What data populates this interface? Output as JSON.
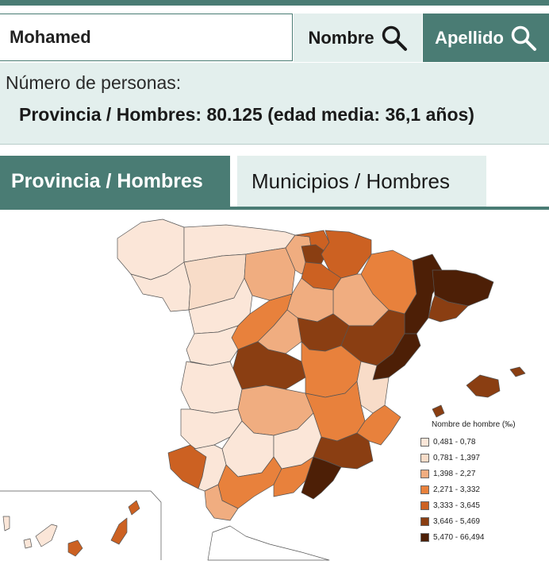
{
  "search": {
    "value": "Mohamed"
  },
  "buttons": {
    "nombre": "Nombre",
    "apellido": "Apellido"
  },
  "summary": {
    "label": "Número de personas:",
    "value": "Provincia / Hombres: 80.125 (edad media: 36,1 años)"
  },
  "tabs": [
    {
      "label": "Provincia / Hombres",
      "active": true
    },
    {
      "label": "Municipios / Hombres",
      "active": false
    }
  ],
  "legend": {
    "title": "Nombre de hombre (‰)",
    "items": [
      {
        "label": "0,481 - 0,78",
        "color": "#fbe6d8"
      },
      {
        "label": "0,781 - 1,397",
        "color": "#f8dcc8"
      },
      {
        "label": "1,398 - 2,27",
        "color": "#f0ad80"
      },
      {
        "label": "2,271 - 3,332",
        "color": "#e8813c"
      },
      {
        "label": "3,333 - 3,645",
        "color": "#cc6122"
      },
      {
        "label": "3,646 - 5,469",
        "color": "#8a3e12"
      },
      {
        "label": "5,470 - 66,494",
        "color": "#4d1f06"
      }
    ]
  },
  "colors": {
    "accent": "#4a7c74",
    "panel": "#e3efed"
  }
}
